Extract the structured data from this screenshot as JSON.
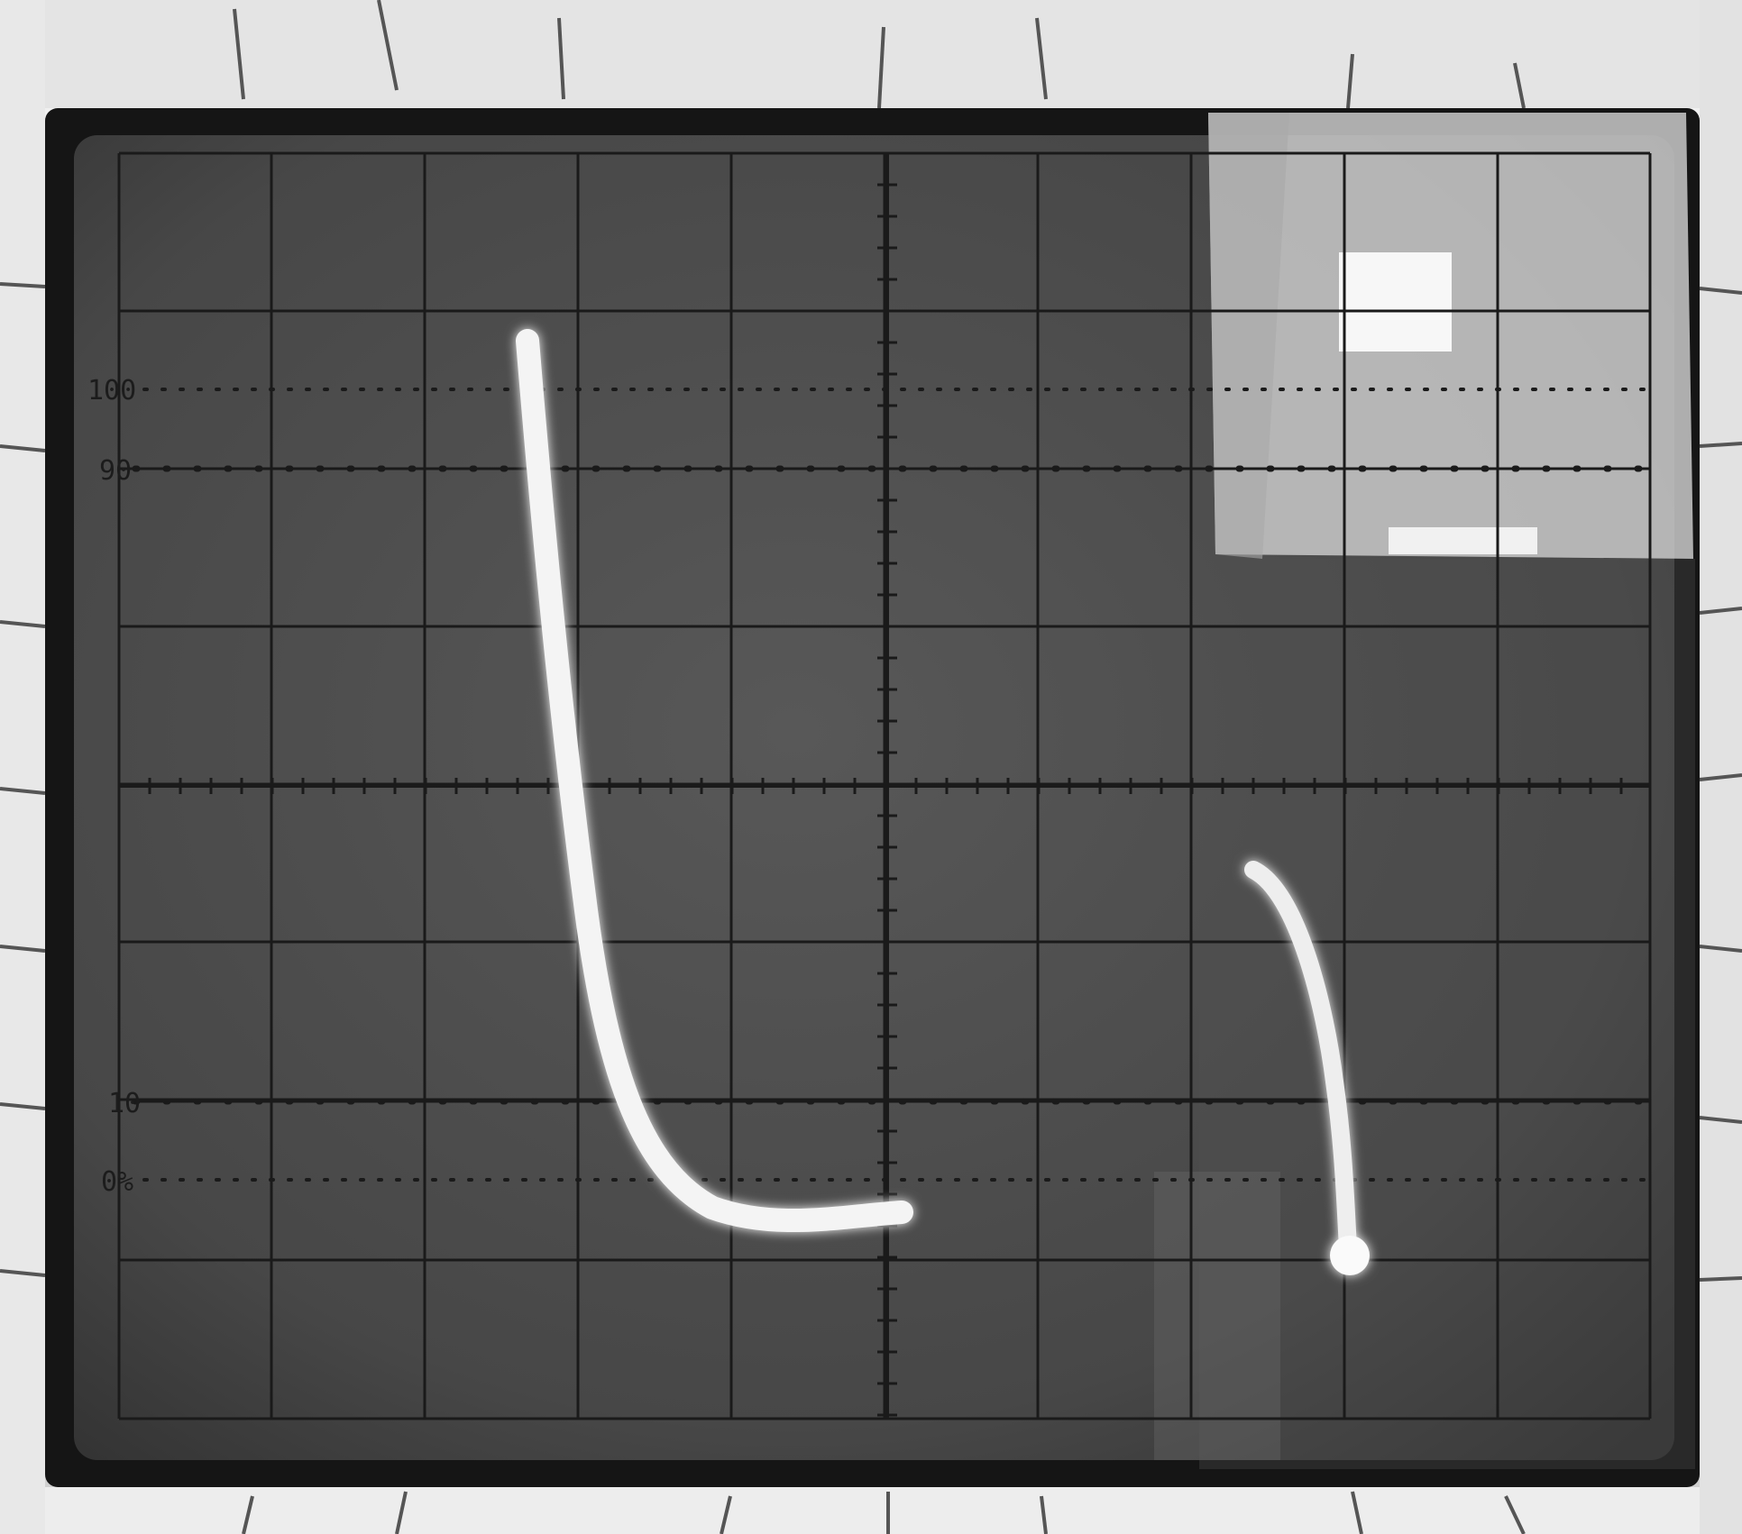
{
  "scope_screen": {
    "graticule_labels": {
      "top_100": "100",
      "top_90": "90",
      "bottom_10": "10",
      "bottom_0": "0%"
    },
    "colors": {
      "bezel": "#e6e6e6",
      "screen": "#4a4a4a",
      "grid": "#1a1a1a",
      "trace": "#f4f4f4",
      "glare": "#d9d9d9"
    }
  }
}
